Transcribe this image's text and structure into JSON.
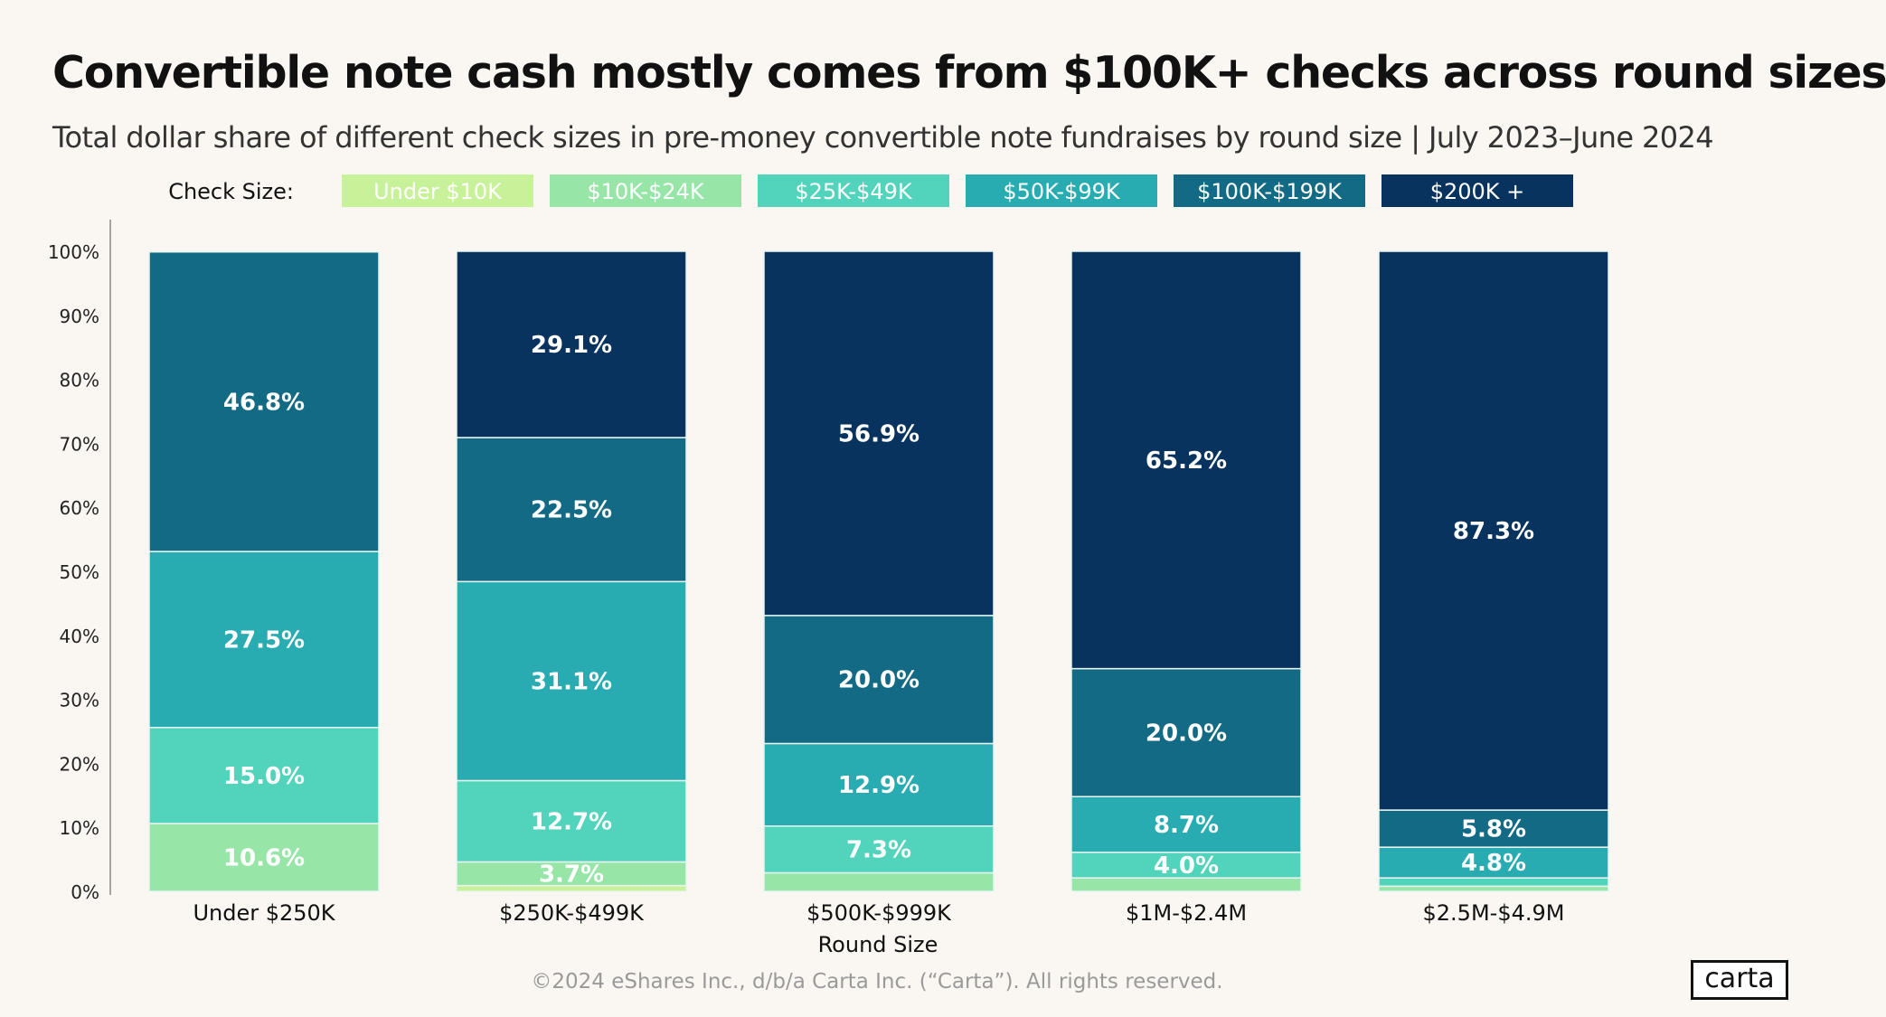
{
  "title": "Convertible note cash mostly comes from $100K+ checks across round sizes",
  "subtitle": "Total dollar share of different check sizes in pre-money convertible note fundraises by round size | July 2023–June 2024",
  "copyright": "©2024 eShares Inc., d/b/a Carta Inc. (“Carta”). All rights reserved.",
  "logo_text": "carta",
  "chart_data": {
    "type": "bar",
    "stacked": true,
    "legend_title": "Check Size:",
    "legend_placement": "top",
    "xlabel": "Round Size",
    "ylabel": "",
    "ylim": [
      0,
      100
    ],
    "yticks": [
      "0%",
      "10%",
      "20%",
      "30%",
      "40%",
      "50%",
      "60%",
      "70%",
      "80%",
      "90%",
      "100%"
    ],
    "categories": [
      "Under $250K",
      "$250K-$499K",
      "$500K-$999K",
      "$1M-$2.4M",
      "$2.5M-$4.9M"
    ],
    "series": [
      {
        "name": "Under $10K",
        "color": "#c8f29a",
        "values": [
          0,
          0.9,
          0,
          0,
          0
        ],
        "labels": [
          "",
          "",
          "",
          "",
          ""
        ]
      },
      {
        "name": "$10K-$24K",
        "color": "#97e6a8",
        "values": [
          10.6,
          3.7,
          2.9,
          2.1,
          0.8
        ],
        "labels": [
          "10.6%",
          "3.7%",
          "",
          "",
          ""
        ]
      },
      {
        "name": "$25K-$49K",
        "color": "#52d3bb",
        "values": [
          15.0,
          12.7,
          7.3,
          4.0,
          1.3
        ],
        "labels": [
          "15.0%",
          "12.7%",
          "7.3%",
          "4.0%",
          ""
        ]
      },
      {
        "name": "$50K-$99K",
        "color": "#28abb1",
        "values": [
          27.5,
          31.1,
          12.9,
          8.7,
          4.8
        ],
        "labels": [
          "27.5%",
          "31.1%",
          "12.9%",
          "8.7%",
          "4.8%"
        ]
      },
      {
        "name": "$100K-$199K",
        "color": "#136a85",
        "values": [
          46.8,
          22.5,
          20.0,
          20.0,
          5.8
        ],
        "labels": [
          "46.8%",
          "22.5%",
          "20.0%",
          "20.0%",
          "5.8%"
        ]
      },
      {
        "name": "$200K +",
        "color": "#07335e",
        "values": [
          0,
          29.1,
          56.9,
          65.2,
          87.3
        ],
        "labels": [
          "",
          "29.1%",
          "56.9%",
          "65.2%",
          "87.3%"
        ]
      }
    ]
  }
}
